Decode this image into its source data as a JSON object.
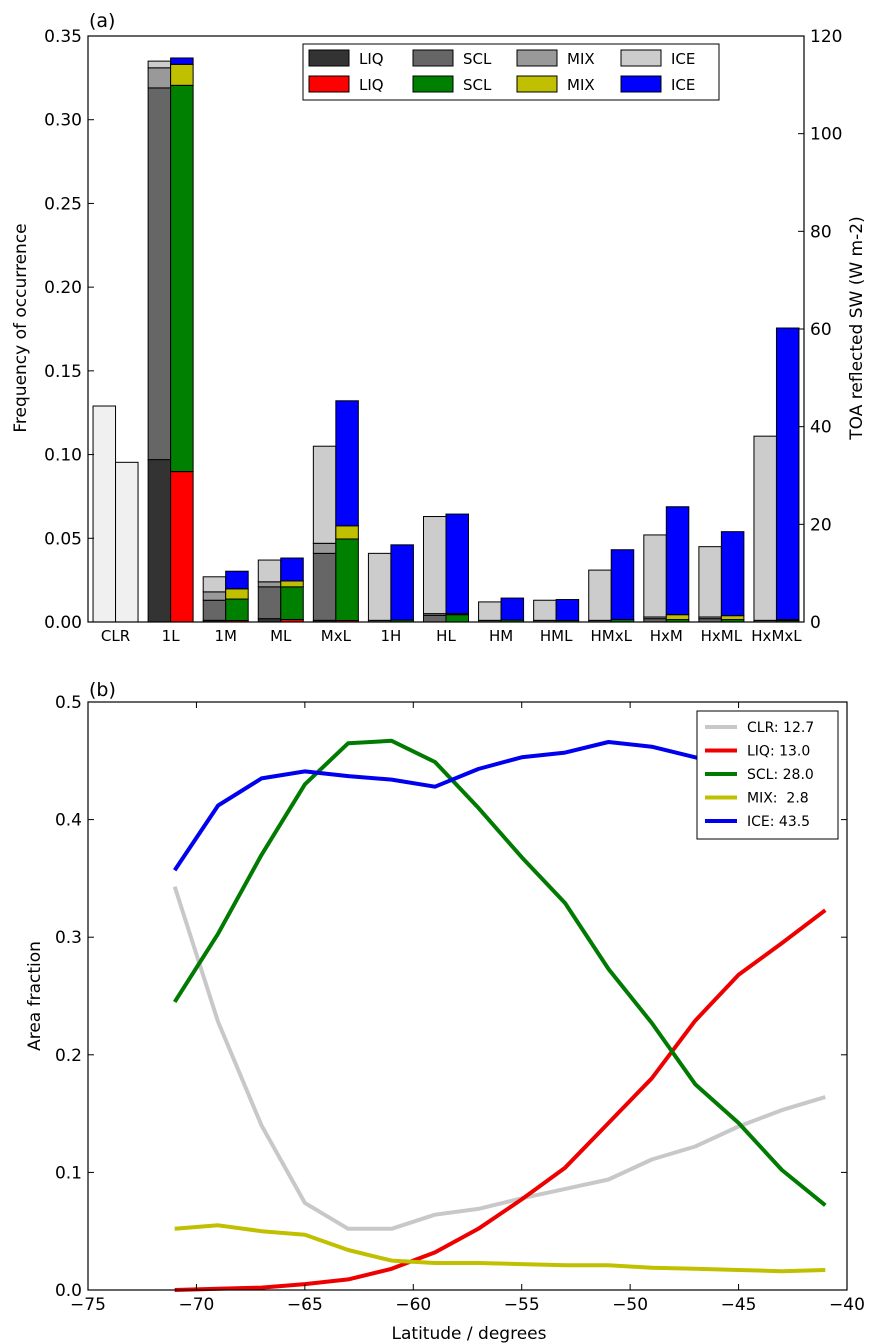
{
  "chart_data": [
    {
      "panel_label": "(a)",
      "type": "bar",
      "ylabel": "Frequency of occurrence",
      "y2label": "TOA reflected SW (W m-2)",
      "ylim": [
        0,
        0.35
      ],
      "y2lim": [
        0,
        120
      ],
      "yticks": [
        "0.00",
        "0.05",
        "0.10",
        "0.15",
        "0.20",
        "0.25",
        "0.30",
        "0.35"
      ],
      "y2ticks": [
        "0",
        "20",
        "40",
        "60",
        "80",
        "100",
        "120"
      ],
      "categories": [
        "CLR",
        "1L",
        "1M",
        "ML",
        "MxL",
        "1H",
        "HL",
        "HM",
        "HML",
        "HMxL",
        "HxM",
        "HxML",
        "HxMxL"
      ],
      "colors": {
        "LIQ": "#333333",
        "SCL": "#666666",
        "MIX": "#999999",
        "ICE": "#cccccc",
        "CLR": "#f0f0f0"
      },
      "colors_sw": {
        "LIQ": "#ff0000",
        "SCL": "#008000",
        "MIX": "#c0c000",
        "ICE": "#0000ff",
        "CLR": "#f0f0f0"
      },
      "legend": {
        "placement": "top-center",
        "row1": [
          {
            "label": "LIQ",
            "color": "#333333"
          },
          {
            "label": "SCL",
            "color": "#666666"
          },
          {
            "label": "MIX",
            "color": "#999999"
          },
          {
            "label": "ICE",
            "color": "#cccccc"
          }
        ],
        "row2": [
          {
            "label": "LIQ",
            "color": "#ff0000"
          },
          {
            "label": "SCL",
            "color": "#008000"
          },
          {
            "label": "MIX",
            "color": "#c0c000"
          },
          {
            "label": "ICE",
            "color": "#0000ff"
          }
        ]
      },
      "frequency": [
        {
          "CLR": 0.129
        },
        {
          "LIQ": 0.097,
          "SCL": 0.222,
          "MIX": 0.012,
          "ICE": 0.004
        },
        {
          "LIQ": 0.001,
          "SCL": 0.012,
          "MIX": 0.005,
          "ICE": 0.009
        },
        {
          "LIQ": 0.002,
          "SCL": 0.019,
          "MIX": 0.003,
          "ICE": 0.013
        },
        {
          "LIQ": 0.001,
          "SCL": 0.04,
          "MIX": 0.006,
          "ICE": 0.058
        },
        {
          "LIQ": 0.0,
          "SCL": 0.001,
          "MIX": 0.0,
          "ICE": 0.04
        },
        {
          "LIQ": 0.0,
          "SCL": 0.004,
          "MIX": 0.001,
          "ICE": 0.058
        },
        {
          "LIQ": 0.0,
          "SCL": 0.001,
          "MIX": 0.0,
          "ICE": 0.011
        },
        {
          "LIQ": 0.0,
          "SCL": 0.001,
          "MIX": 0.0,
          "ICE": 0.012
        },
        {
          "LIQ": 0.0,
          "SCL": 0.001,
          "MIX": 0.0,
          "ICE": 0.03
        },
        {
          "LIQ": 0.0,
          "SCL": 0.002,
          "MIX": 0.001,
          "ICE": 0.049
        },
        {
          "LIQ": 0.0,
          "SCL": 0.002,
          "MIX": 0.001,
          "ICE": 0.042
        },
        {
          "LIQ": 0.0,
          "SCL": 0.001,
          "MIX": 0.0,
          "ICE": 0.11
        }
      ],
      "toa_sw": [
        {
          "CLR": 32.7
        },
        {
          "LIQ": 30.8,
          "SCL": 79.1,
          "MIX": 4.3,
          "ICE": 1.3
        },
        {
          "LIQ": 0.3,
          "SCL": 4.4,
          "MIX": 2.1,
          "ICE": 3.6
        },
        {
          "LIQ": 0.5,
          "SCL": 6.7,
          "MIX": 1.2,
          "ICE": 4.7
        },
        {
          "LIQ": 0.3,
          "SCL": 16.7,
          "MIX": 2.7,
          "ICE": 25.6
        },
        {
          "LIQ": 0.0,
          "SCL": 0.4,
          "MIX": 0.0,
          "ICE": 15.4
        },
        {
          "LIQ": 0.0,
          "SCL": 1.5,
          "MIX": 0.2,
          "ICE": 20.4
        },
        {
          "LIQ": 0.0,
          "SCL": 0.4,
          "MIX": 0.0,
          "ICE": 4.5
        },
        {
          "LIQ": 0.0,
          "SCL": 0.3,
          "MIX": 0.0,
          "ICE": 4.3
        },
        {
          "LIQ": 0.0,
          "SCL": 0.5,
          "MIX": 0.0,
          "ICE": 14.3
        },
        {
          "LIQ": 0.0,
          "SCL": 0.5,
          "MIX": 1.0,
          "ICE": 22.1
        },
        {
          "LIQ": 0.0,
          "SCL": 0.5,
          "MIX": 0.8,
          "ICE": 17.2
        },
        {
          "LIQ": 0.0,
          "SCL": 0.3,
          "MIX": 0.2,
          "ICE": 59.7
        }
      ]
    },
    {
      "panel_label": "(b)",
      "type": "line",
      "xlabel": "Latitude / degrees",
      "ylabel": "Area fraction",
      "xlim": [
        -75,
        -40
      ],
      "ylim": [
        0,
        0.5
      ],
      "xticks": [
        "−75",
        "−70",
        "−65",
        "−60",
        "−55",
        "−50",
        "−45",
        "−40"
      ],
      "yticks": [
        "0.0",
        "0.1",
        "0.2",
        "0.3",
        "0.4",
        "0.5"
      ],
      "legend_placement": "top-right",
      "x": [
        -71,
        -69,
        -67,
        -65,
        -63,
        -61,
        -59,
        -57,
        -55,
        -53,
        -51,
        -49,
        -47,
        -45,
        -43,
        -41
      ],
      "series": [
        {
          "name": "CLR: 12.7",
          "color": "#c8c8c8",
          "values": [
            0.343,
            0.228,
            0.14,
            0.074,
            0.052,
            0.052,
            0.064,
            0.069,
            0.078,
            0.086,
            0.094,
            0.111,
            0.122,
            0.139,
            0.153,
            0.164
          ]
        },
        {
          "name": "LIQ: 13.0",
          "color": "#ee0000",
          "values": [
            0.0,
            0.001,
            0.002,
            0.005,
            0.009,
            0.018,
            0.032,
            0.052,
            0.077,
            0.104,
            0.142,
            0.18,
            0.229,
            0.268,
            0.295,
            0.323
          ]
        },
        {
          "name": "SCL: 28.0",
          "color": "#007a00",
          "values": [
            0.245,
            0.303,
            0.37,
            0.43,
            0.465,
            0.467,
            0.449,
            0.41,
            0.368,
            0.329,
            0.273,
            0.227,
            0.175,
            0.142,
            0.102,
            0.072
          ]
        },
        {
          "name": "MIX:  2.8",
          "color": "#c0c000",
          "values": [
            0.052,
            0.055,
            0.05,
            0.047,
            0.034,
            0.025,
            0.023,
            0.023,
            0.022,
            0.021,
            0.021,
            0.019,
            0.018,
            0.017,
            0.016,
            0.017
          ]
        },
        {
          "name": "ICE: 43.5",
          "color": "#0000ee",
          "values": [
            0.357,
            0.412,
            0.435,
            0.441,
            0.437,
            0.434,
            0.428,
            0.443,
            0.453,
            0.457,
            0.466,
            0.462,
            0.453,
            0.444,
            0.44,
            0.436
          ]
        }
      ]
    }
  ]
}
